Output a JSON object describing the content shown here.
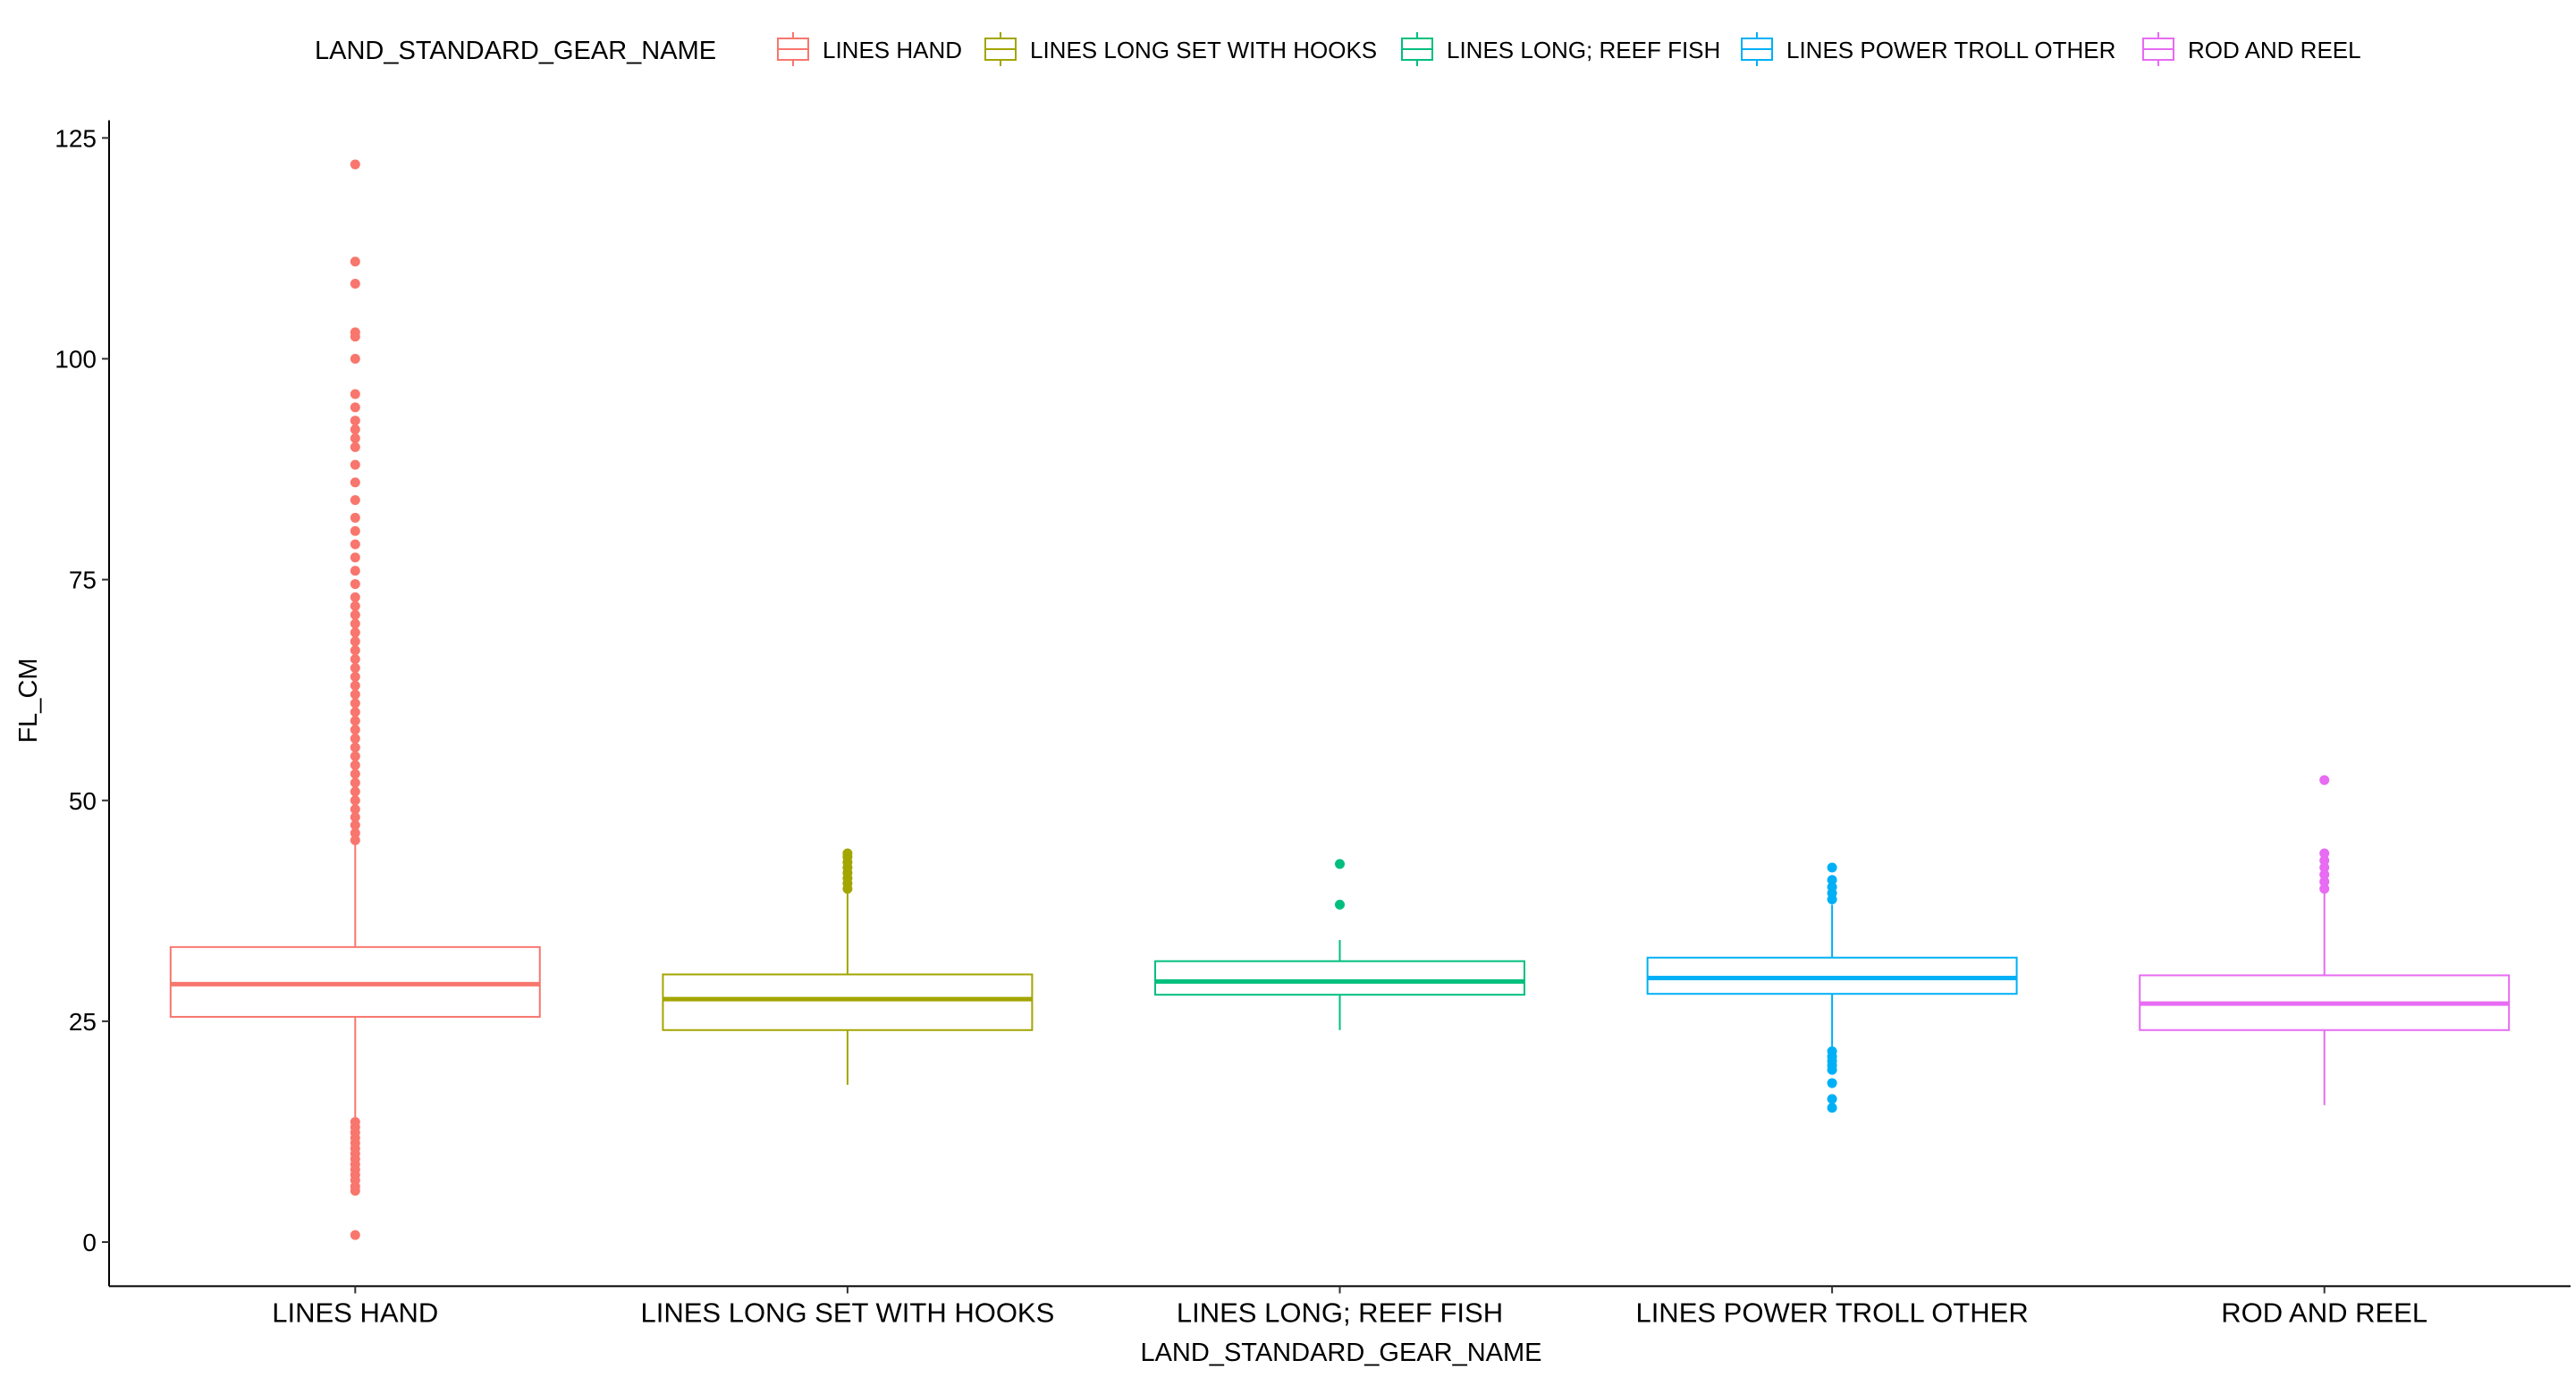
{
  "chart_data": {
    "type": "boxplot",
    "title": "",
    "xlabel": "LAND_STANDARD_GEAR_NAME",
    "ylabel": "FL_CM",
    "ylim": [
      -5,
      127
    ],
    "yticks": [
      0,
      25,
      50,
      75,
      100,
      125
    ],
    "grid": false,
    "legend": {
      "title": "LAND_STANDARD_GEAR_NAME",
      "position": "top"
    },
    "categories": [
      "LINES HAND",
      "LINES LONG SET WITH HOOKS",
      "LINES LONG; REEF FISH",
      "LINES POWER TROLL OTHER",
      "ROD AND REEL"
    ],
    "series": [
      {
        "name": "LINES HAND",
        "color": "#F8766D",
        "whisker_low": 14,
        "q1": 25.5,
        "median": 29.2,
        "q3": 33.4,
        "whisker_high": 45,
        "outliers": [
          0.8,
          5.8,
          6.3,
          7,
          7.6,
          8.2,
          8.8,
          9.4,
          10,
          10.6,
          11.2,
          11.8,
          12.4,
          13,
          13.6,
          45.5,
          46.3,
          47.2,
          48.1,
          49,
          50,
          51,
          52,
          53,
          54,
          55,
          56,
          57,
          58,
          59,
          60,
          61,
          62,
          63,
          64,
          65,
          66,
          67,
          68,
          69,
          70,
          71,
          72,
          73,
          74.5,
          76,
          77.5,
          79,
          80.5,
          82,
          84,
          86,
          88,
          90,
          91,
          92,
          93,
          94.5,
          96,
          100,
          102.5,
          103,
          108.5,
          111,
          122
        ]
      },
      {
        "name": "LINES LONG SET WITH HOOKS",
        "color": "#A3A500",
        "whisker_low": 17.8,
        "q1": 24,
        "median": 27.5,
        "q3": 30.3,
        "whisker_high": 39.5,
        "outliers": [
          40,
          40.6,
          41.2,
          41.8,
          42.4,
          43,
          43.6,
          44
        ]
      },
      {
        "name": "LINES LONG; REEF FISH",
        "color": "#00BF7D",
        "whisker_low": 24,
        "q1": 28,
        "median": 29.5,
        "q3": 31.8,
        "whisker_high": 34.2,
        "outliers": [
          38.2,
          42.8
        ]
      },
      {
        "name": "LINES POWER TROLL OTHER",
        "color": "#00B0F6",
        "whisker_low": 22,
        "q1": 28.1,
        "median": 29.9,
        "q3": 32.2,
        "whisker_high": 38.2,
        "outliers": [
          15.2,
          16.2,
          18,
          19.5,
          20,
          20.5,
          21,
          21.6,
          38.8,
          39.5,
          40.2,
          41,
          42.4
        ]
      },
      {
        "name": "ROD AND REEL",
        "color": "#E76BF3",
        "whisker_low": 15.5,
        "q1": 24,
        "median": 27,
        "q3": 30.2,
        "whisker_high": 39.5,
        "outliers": [
          40,
          40.8,
          41.6,
          42.4,
          43.2,
          44,
          52.3
        ]
      }
    ]
  }
}
